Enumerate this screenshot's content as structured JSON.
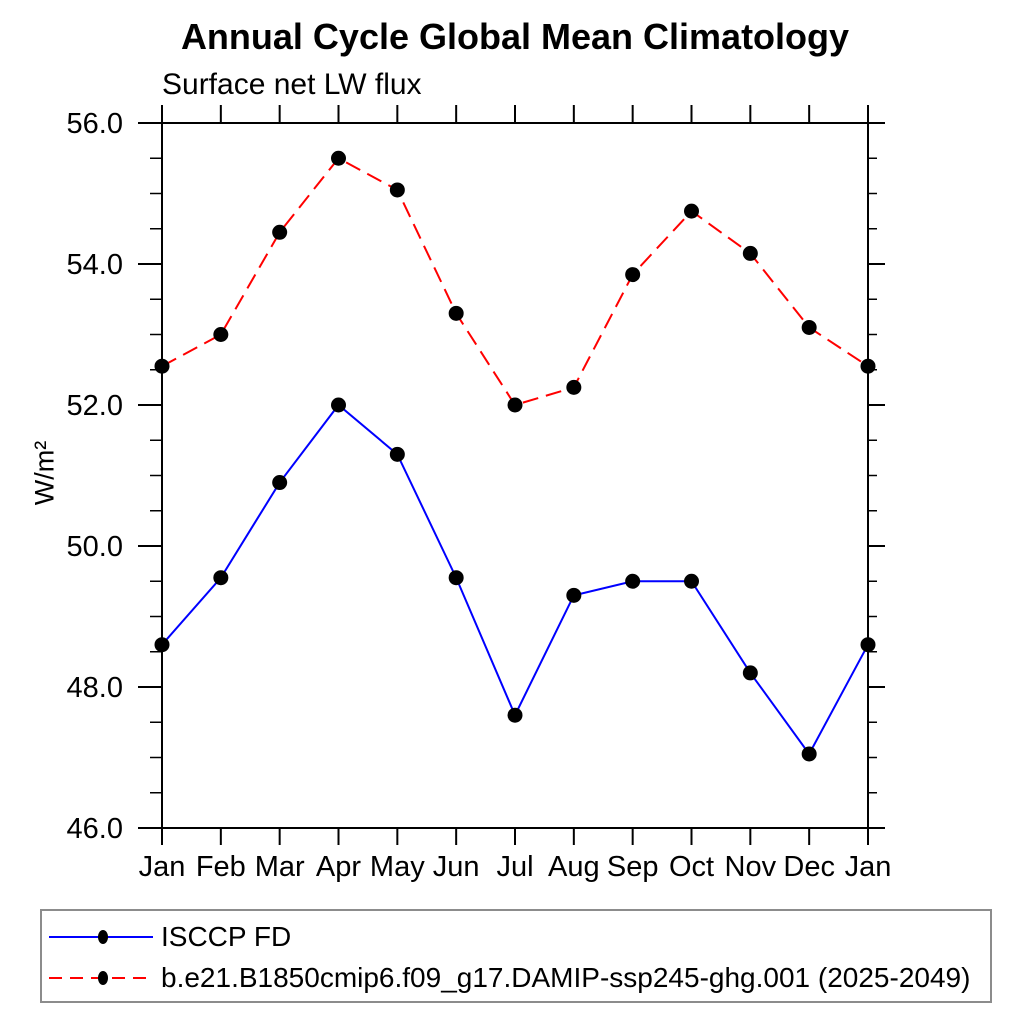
{
  "page": {
    "background": "#ffffff"
  },
  "chart": {
    "title": "Annual Cycle Global Mean Climatology",
    "subtitle": "Surface net LW flux",
    "ylabel": "W/m²"
  },
  "chart_data": {
    "type": "line",
    "categories": [
      "Jan",
      "Feb",
      "Mar",
      "Apr",
      "May",
      "Jun",
      "Jul",
      "Aug",
      "Sep",
      "Oct",
      "Nov",
      "Dec",
      "Jan"
    ],
    "series": [
      {
        "name": "ISCCP FD",
        "color": "#0000ff",
        "line_style": "solid",
        "marker": "filled-circle",
        "marker_color": "#000000",
        "values": [
          48.6,
          49.55,
          50.9,
          52.0,
          51.3,
          49.55,
          47.6,
          49.3,
          49.5,
          49.5,
          48.2,
          47.05,
          48.6
        ]
      },
      {
        "name": "b.e21.B1850cmip6.f09_g17.DAMIP-ssp245-ghg.001 (2025-2049)",
        "color": "#ff0000",
        "line_style": "dashed",
        "marker": "filled-circle",
        "marker_color": "#000000",
        "values": [
          52.55,
          53.0,
          54.45,
          55.5,
          55.05,
          53.3,
          52.0,
          52.25,
          53.85,
          54.75,
          54.15,
          53.1,
          52.55
        ]
      }
    ],
    "ylim": [
      46.0,
      56.0
    ],
    "y_major_ticks": [
      46.0,
      48.0,
      50.0,
      52.0,
      54.0,
      56.0
    ],
    "y_major_tick_labels": [
      "46.0",
      "48.0",
      "50.0",
      "52.0",
      "54.0",
      "56.0"
    ],
    "y_minor_step": 0.5,
    "grid": false,
    "legend_position": "bottom-left",
    "axis_color": "#000000"
  }
}
